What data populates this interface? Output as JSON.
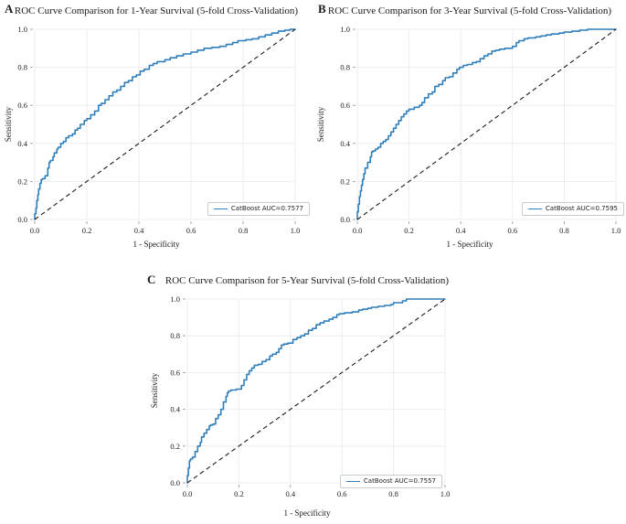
{
  "figure": {
    "colors": {
      "curve_blue": "#2e7ebc",
      "diagonal": "#1c1c1c",
      "grid": "#ecedf1",
      "tick_mark": "#9b9b9b",
      "legend_border": "#c8cbd0"
    },
    "panels": [
      {
        "label": "A",
        "title": "ROC Curve Comparison for 1-Year Survival (5-fold Cross-Validation)",
        "legend_label": "CatBoost AUC=0.7577",
        "xlabel": "1 - Specificity",
        "ylabel": "Sensitivity"
      },
      {
        "label": "B",
        "title": "ROC Curve Comparison for 3-Year Survival (5-fold Cross-Validation)",
        "legend_label": "CatBoost AUC=0.7595",
        "xlabel": "1 - Specificity",
        "ylabel": "Sensitivity"
      },
      {
        "label": "C",
        "title": "ROC Curve Comparison for 5-Year Survival (5-fold Cross-Validation)",
        "legend_label": "CatBoost AUC=0.7557",
        "xlabel": "1 - Specificity",
        "ylabel": "Sensitivity"
      }
    ]
  },
  "chart_data": [
    {
      "type": "line",
      "panel_label": "A",
      "title": "ROC Curve Comparison for 1-Year Survival (5-fold Cross-Validation)",
      "xlabel": "1 - Specificity",
      "ylabel": "Sensitivity",
      "xlim": [
        0,
        1
      ],
      "ylim": [
        0,
        1
      ],
      "xticks": [
        0.0,
        0.2,
        0.4,
        0.6,
        0.8,
        1.0
      ],
      "yticks": [
        0.0,
        0.2,
        0.4,
        0.6,
        0.8,
        1.0
      ],
      "grid": true,
      "legend_position": "lower right",
      "series": [
        {
          "name": "CatBoost AUC=0.7577",
          "auc": 0.7577,
          "color": "#2e7ebc",
          "style": "step",
          "points": [
            [
              0,
              0
            ],
            [
              0.005,
              0.03
            ],
            [
              0.008,
              0.06
            ],
            [
              0.012,
              0.1
            ],
            [
              0.015,
              0.13
            ],
            [
              0.02,
              0.16
            ],
            [
              0.025,
              0.19
            ],
            [
              0.03,
              0.21
            ],
            [
              0.04,
              0.215
            ],
            [
              0.05,
              0.23
            ],
            [
              0.055,
              0.27
            ],
            [
              0.06,
              0.3
            ],
            [
              0.07,
              0.31
            ],
            [
              0.075,
              0.33
            ],
            [
              0.085,
              0.35
            ],
            [
              0.09,
              0.37
            ],
            [
              0.1,
              0.38
            ],
            [
              0.11,
              0.4
            ],
            [
              0.12,
              0.41
            ],
            [
              0.13,
              0.43
            ],
            [
              0.145,
              0.44
            ],
            [
              0.155,
              0.45
            ],
            [
              0.165,
              0.47
            ],
            [
              0.175,
              0.48
            ],
            [
              0.19,
              0.5
            ],
            [
              0.2,
              0.52
            ],
            [
              0.215,
              0.53
            ],
            [
              0.23,
              0.55
            ],
            [
              0.245,
              0.57
            ],
            [
              0.255,
              0.6
            ],
            [
              0.27,
              0.61
            ],
            [
              0.285,
              0.63
            ],
            [
              0.3,
              0.65
            ],
            [
              0.315,
              0.67
            ],
            [
              0.33,
              0.68
            ],
            [
              0.345,
              0.7
            ],
            [
              0.36,
              0.72
            ],
            [
              0.375,
              0.73
            ],
            [
              0.39,
              0.75
            ],
            [
              0.405,
              0.76
            ],
            [
              0.42,
              0.78
            ],
            [
              0.44,
              0.79
            ],
            [
              0.455,
              0.81
            ],
            [
              0.47,
              0.82
            ],
            [
              0.5,
              0.83
            ],
            [
              0.52,
              0.84
            ],
            [
              0.545,
              0.85
            ],
            [
              0.57,
              0.86
            ],
            [
              0.6,
              0.87
            ],
            [
              0.625,
              0.88
            ],
            [
              0.65,
              0.89
            ],
            [
              0.68,
              0.9
            ],
            [
              0.71,
              0.905
            ],
            [
              0.735,
              0.91
            ],
            [
              0.76,
              0.92
            ],
            [
              0.78,
              0.93
            ],
            [
              0.81,
              0.94
            ],
            [
              0.835,
              0.945
            ],
            [
              0.86,
              0.95
            ],
            [
              0.885,
              0.96
            ],
            [
              0.91,
              0.97
            ],
            [
              0.935,
              0.98
            ],
            [
              0.96,
              0.99
            ],
            [
              0.98,
              0.995
            ],
            [
              1,
              1
            ]
          ]
        },
        {
          "name": "chance-diagonal",
          "color": "#1c1c1c",
          "style": "dashed",
          "points": [
            [
              0,
              0
            ],
            [
              1,
              1
            ]
          ]
        }
      ]
    },
    {
      "type": "line",
      "panel_label": "B",
      "title": "ROC Curve Comparison for 3-Year Survival (5-fold Cross-Validation)",
      "xlabel": "1 - Specificity",
      "ylabel": "Sensitivity",
      "xlim": [
        0,
        1
      ],
      "ylim": [
        0,
        1
      ],
      "xticks": [
        0.0,
        0.2,
        0.4,
        0.6,
        0.8,
        1.0
      ],
      "yticks": [
        0.0,
        0.2,
        0.4,
        0.6,
        0.8,
        1.0
      ],
      "grid": true,
      "legend_position": "lower right",
      "series": [
        {
          "name": "CatBoost AUC=0.7595",
          "auc": 0.7595,
          "color": "#2e7ebc",
          "style": "step",
          "points": [
            [
              0,
              0
            ],
            [
              0.004,
              0.04
            ],
            [
              0.008,
              0.08
            ],
            [
              0.012,
              0.12
            ],
            [
              0.016,
              0.15
            ],
            [
              0.02,
              0.18
            ],
            [
              0.025,
              0.21
            ],
            [
              0.03,
              0.24
            ],
            [
              0.04,
              0.27
            ],
            [
              0.05,
              0.3
            ],
            [
              0.055,
              0.33
            ],
            [
              0.06,
              0.355
            ],
            [
              0.07,
              0.36
            ],
            [
              0.08,
              0.37
            ],
            [
              0.09,
              0.38
            ],
            [
              0.1,
              0.4
            ],
            [
              0.11,
              0.41
            ],
            [
              0.12,
              0.42
            ],
            [
              0.13,
              0.44
            ],
            [
              0.14,
              0.46
            ],
            [
              0.15,
              0.48
            ],
            [
              0.16,
              0.5
            ],
            [
              0.17,
              0.52
            ],
            [
              0.18,
              0.54
            ],
            [
              0.19,
              0.555
            ],
            [
              0.2,
              0.57
            ],
            [
              0.22,
              0.58
            ],
            [
              0.24,
              0.59
            ],
            [
              0.25,
              0.6
            ],
            [
              0.26,
              0.615
            ],
            [
              0.275,
              0.64
            ],
            [
              0.29,
              0.66
            ],
            [
              0.3,
              0.67
            ],
            [
              0.315,
              0.7
            ],
            [
              0.33,
              0.71
            ],
            [
              0.34,
              0.73
            ],
            [
              0.355,
              0.745
            ],
            [
              0.37,
              0.75
            ],
            [
              0.385,
              0.77
            ],
            [
              0.395,
              0.79
            ],
            [
              0.41,
              0.8
            ],
            [
              0.425,
              0.81
            ],
            [
              0.445,
              0.815
            ],
            [
              0.46,
              0.825
            ],
            [
              0.475,
              0.83
            ],
            [
              0.49,
              0.845
            ],
            [
              0.505,
              0.86
            ],
            [
              0.52,
              0.87
            ],
            [
              0.535,
              0.885
            ],
            [
              0.55,
              0.89
            ],
            [
              0.57,
              0.895
            ],
            [
              0.6,
              0.9
            ],
            [
              0.615,
              0.91
            ],
            [
              0.625,
              0.93
            ],
            [
              0.645,
              0.94
            ],
            [
              0.66,
              0.95
            ],
            [
              0.69,
              0.955
            ],
            [
              0.71,
              0.96
            ],
            [
              0.73,
              0.965
            ],
            [
              0.75,
              0.97
            ],
            [
              0.78,
              0.975
            ],
            [
              0.8,
              0.98
            ],
            [
              0.83,
              0.985
            ],
            [
              0.86,
              0.99
            ],
            [
              0.89,
              0.995
            ],
            [
              0.93,
              1
            ],
            [
              1,
              1
            ]
          ]
        },
        {
          "name": "chance-diagonal",
          "color": "#1c1c1c",
          "style": "dashed",
          "points": [
            [
              0,
              0
            ],
            [
              1,
              1
            ]
          ]
        }
      ]
    },
    {
      "type": "line",
      "panel_label": "C",
      "title": "ROC Curve Comparison for 5-Year Survival (5-fold Cross-Validation)",
      "xlabel": "1 - Specificity",
      "ylabel": "Sensitivity",
      "xlim": [
        0,
        1
      ],
      "ylim": [
        0,
        1
      ],
      "xticks": [
        0.0,
        0.2,
        0.4,
        0.6,
        0.8,
        1.0
      ],
      "yticks": [
        0.0,
        0.2,
        0.4,
        0.6,
        0.8,
        1.0
      ],
      "grid": true,
      "legend_position": "lower right",
      "series": [
        {
          "name": "CatBoost AUC=0.7557",
          "auc": 0.7557,
          "color": "#2e7ebc",
          "style": "step",
          "points": [
            [
              0,
              0
            ],
            [
              0.004,
              0.04
            ],
            [
              0.008,
              0.08
            ],
            [
              0.012,
              0.12
            ],
            [
              0.02,
              0.13
            ],
            [
              0.03,
              0.14
            ],
            [
              0.04,
              0.17
            ],
            [
              0.05,
              0.2
            ],
            [
              0.055,
              0.22
            ],
            [
              0.065,
              0.25
            ],
            [
              0.075,
              0.27
            ],
            [
              0.085,
              0.29
            ],
            [
              0.09,
              0.31
            ],
            [
              0.1,
              0.315
            ],
            [
              0.11,
              0.32
            ],
            [
              0.12,
              0.35
            ],
            [
              0.13,
              0.37
            ],
            [
              0.14,
              0.4
            ],
            [
              0.15,
              0.44
            ],
            [
              0.155,
              0.47
            ],
            [
              0.16,
              0.49
            ],
            [
              0.17,
              0.5
            ],
            [
              0.19,
              0.505
            ],
            [
              0.21,
              0.51
            ],
            [
              0.22,
              0.53
            ],
            [
              0.23,
              0.56
            ],
            [
              0.24,
              0.59
            ],
            [
              0.25,
              0.61
            ],
            [
              0.26,
              0.625
            ],
            [
              0.275,
              0.64
            ],
            [
              0.29,
              0.645
            ],
            [
              0.305,
              0.66
            ],
            [
              0.32,
              0.67
            ],
            [
              0.33,
              0.69
            ],
            [
              0.345,
              0.7
            ],
            [
              0.355,
              0.71
            ],
            [
              0.365,
              0.73
            ],
            [
              0.375,
              0.75
            ],
            [
              0.39,
              0.755
            ],
            [
              0.41,
              0.76
            ],
            [
              0.425,
              0.78
            ],
            [
              0.44,
              0.79
            ],
            [
              0.455,
              0.8
            ],
            [
              0.47,
              0.81
            ],
            [
              0.485,
              0.83
            ],
            [
              0.5,
              0.84
            ],
            [
              0.515,
              0.86
            ],
            [
              0.53,
              0.87
            ],
            [
              0.55,
              0.88
            ],
            [
              0.565,
              0.89
            ],
            [
              0.58,
              0.9
            ],
            [
              0.59,
              0.915
            ],
            [
              0.61,
              0.92
            ],
            [
              0.64,
              0.925
            ],
            [
              0.665,
              0.93
            ],
            [
              0.68,
              0.94
            ],
            [
              0.7,
              0.945
            ],
            [
              0.715,
              0.95
            ],
            [
              0.74,
              0.955
            ],
            [
              0.765,
              0.96
            ],
            [
              0.79,
              0.965
            ],
            [
              0.8,
              0.97
            ],
            [
              0.835,
              0.98
            ],
            [
              0.85,
              0.99
            ],
            [
              0.865,
              1
            ],
            [
              1,
              1
            ]
          ]
        },
        {
          "name": "chance-diagonal",
          "color": "#1c1c1c",
          "style": "dashed",
          "points": [
            [
              0,
              0
            ],
            [
              1,
              1
            ]
          ]
        }
      ]
    }
  ]
}
